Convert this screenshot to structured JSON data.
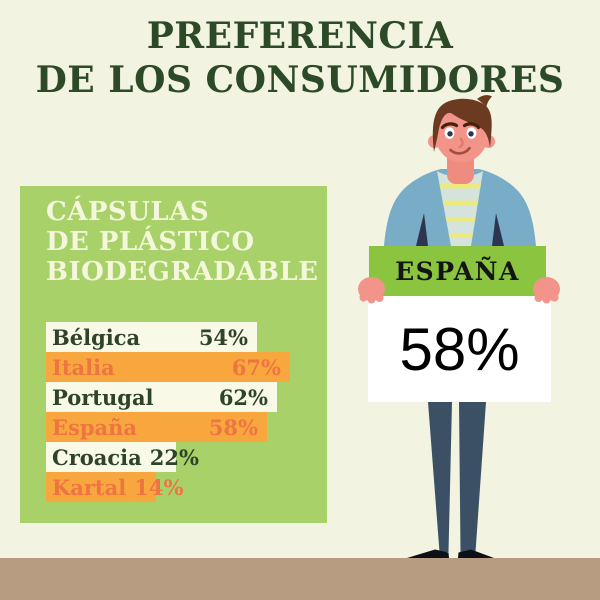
{
  "page": {
    "background": "#f2f3e0",
    "floor_color": "#b89c82"
  },
  "title": {
    "line1": "PREFERENCIA",
    "line2": "DE LOS CONSUMIDORES",
    "color": "#2c4a27"
  },
  "panel": {
    "background": "#a8d169",
    "heading": [
      "CÁPSULAS",
      "DE PLÁSTICO",
      "BIODEGRADABLE"
    ],
    "heading_color": "#f5f7dd"
  },
  "chart_data": {
    "type": "bar",
    "orientation": "horizontal",
    "title": "PREFERENCIA DE LOS CONSUMIDORES",
    "subtitle": "CÁPSULAS DE PLÁSTICO BIODEGRADABLE",
    "categories": [
      "Bélgica",
      "Italia",
      "Portugal",
      "España",
      "Croacia",
      "Kartal"
    ],
    "values": [
      54,
      67,
      62,
      58,
      22,
      14
    ],
    "unit": "%",
    "legend": "none",
    "grid": false,
    "value_range": [
      0,
      100
    ],
    "bar_colors_alternate": [
      "#f8f9e7",
      "#f8a73f"
    ],
    "text_colors_alternate": [
      "#2f432b",
      "#ee7442"
    ]
  },
  "sign": {
    "country": "ESPAÑA",
    "value": "58%",
    "header_color": "#8bc540",
    "body_color": "#ffffff"
  },
  "illustration": {
    "name": "man-holding-sign",
    "skin": "#f2948a",
    "hair": "#6b3a21",
    "cardigan": "#79adc7",
    "shirt": "#d5e3dd",
    "stripe": "#ece97f",
    "accent_navy": "#2c3650",
    "pants": "#3b5065",
    "shoes": "#0d1117"
  }
}
